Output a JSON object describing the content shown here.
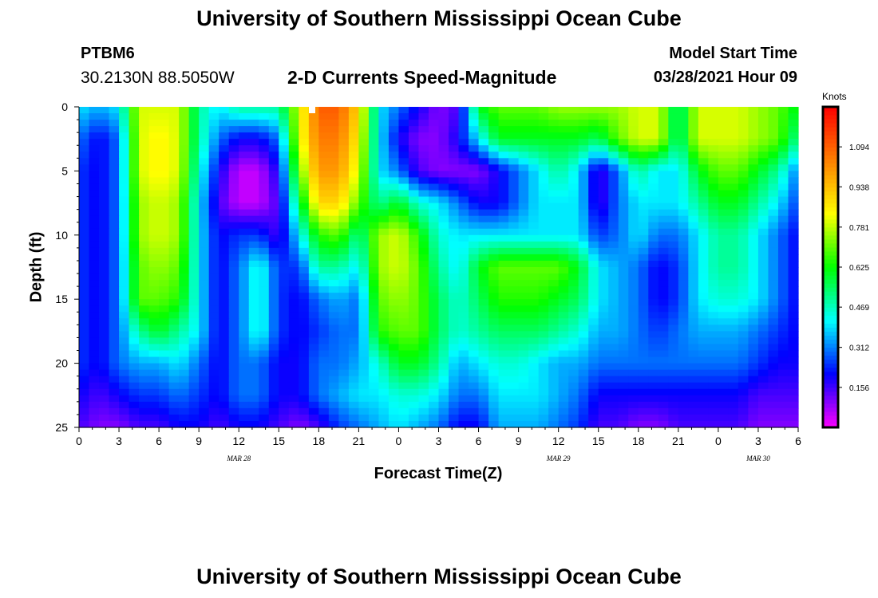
{
  "header": {
    "title": "University of Southern Mississippi Ocean Cube",
    "station_id": "PTBM6",
    "station_coords": "30.2130N  88.5050W",
    "chart_title": "2-D Currents Speed-Magnitude",
    "model_start_label": "Model Start Time",
    "model_start_value": "03/28/2021 Hour 09"
  },
  "footer": {
    "title": "University of Southern Mississippi Ocean Cube"
  },
  "chart_data": {
    "type": "heatmap",
    "title": "2-D Currents Speed-Magnitude",
    "xlabel": "Forecast Time(Z)",
    "ylabel": "Depth (ft)",
    "colorbar_label": "Knots",
    "colorbar_ticks": [
      "0.156",
      "0.312",
      "0.469",
      "0.625",
      "0.781",
      "0.938",
      "1.094"
    ],
    "colorbar_values": [
      0.156,
      0.312,
      0.469,
      0.625,
      0.781,
      0.938,
      1.094
    ],
    "value_range": [
      0.0,
      1.25
    ],
    "colors": [
      "#ff00ff",
      "#0000ff",
      "#00ffff",
      "#00ff00",
      "#ffff00",
      "#ff8000",
      "#ff0000"
    ],
    "x_tick_labels": [
      "0",
      "3",
      "6",
      "9",
      "12",
      "15",
      "18",
      "21",
      "0",
      "3",
      "6",
      "9",
      "12",
      "15",
      "18",
      "21",
      "0",
      "3",
      "6"
    ],
    "x_hours_since_start": [
      0,
      3,
      6,
      9,
      12,
      15,
      18,
      21,
      24,
      27,
      30,
      33,
      36,
      39,
      42,
      45,
      48,
      51,
      54
    ],
    "x_range_hours": [
      0,
      54
    ],
    "date_labels": [
      {
        "label": "MAR 28",
        "hour": 12
      },
      {
        "label": "MAR 29",
        "hour": 36
      },
      {
        "label": "MAR 30",
        "hour": 51
      }
    ],
    "y_tick_labels": [
      "0",
      "5",
      "10",
      "15",
      "20",
      "25"
    ],
    "y_ticks": [
      0,
      5,
      10,
      15,
      20,
      25
    ],
    "ylim": [
      0,
      25
    ],
    "y_inverted": true,
    "depths_ft": [
      0,
      2.5,
      5,
      7.5,
      10,
      12.5,
      15,
      17.5,
      20,
      22.5,
      25
    ],
    "times_hours": [
      0,
      1.5,
      3,
      4.5,
      6,
      7.5,
      9,
      10.5,
      12,
      13.5,
      15,
      16.5,
      18,
      19.5,
      21,
      22.5,
      24,
      25.5,
      27,
      28.5,
      30,
      31.5,
      33,
      34.5,
      36,
      37.5,
      39,
      40.5,
      42,
      43.5,
      45,
      46.5,
      48,
      49.5,
      51,
      52.5,
      54
    ],
    "values_knots": [
      [
        0.4,
        0.35,
        0.4,
        0.8,
        0.8,
        0.8,
        0.5,
        0.4,
        0.5,
        0.5,
        0.5,
        0.8,
        1.1,
        1.1,
        0.9,
        0.4,
        0.3,
        0.2,
        0.1,
        0.15,
        0.6,
        0.7,
        0.7,
        0.7,
        0.75,
        0.75,
        0.75,
        0.75,
        0.8,
        0.8,
        0.5,
        0.8,
        0.8,
        0.8,
        0.75,
        0.7,
        0.6
      ],
      [
        0.3,
        0.2,
        0.3,
        0.8,
        0.85,
        0.8,
        0.5,
        0.3,
        0.2,
        0.2,
        0.3,
        0.8,
        1.05,
        1.05,
        0.85,
        0.4,
        0.2,
        0.1,
        0.1,
        0.2,
        0.4,
        0.6,
        0.6,
        0.6,
        0.6,
        0.6,
        0.55,
        0.7,
        0.8,
        0.8,
        0.5,
        0.8,
        0.8,
        0.8,
        0.75,
        0.7,
        0.5
      ],
      [
        0.25,
        0.2,
        0.3,
        0.8,
        0.85,
        0.8,
        0.45,
        0.2,
        0.05,
        0.05,
        0.2,
        0.7,
        1.0,
        1.0,
        0.8,
        0.4,
        0.3,
        0.15,
        0.1,
        0.1,
        0.1,
        0.2,
        0.3,
        0.4,
        0.5,
        0.4,
        0.15,
        0.3,
        0.5,
        0.4,
        0.4,
        0.6,
        0.7,
        0.7,
        0.6,
        0.5,
        0.3
      ],
      [
        0.25,
        0.2,
        0.3,
        0.75,
        0.8,
        0.75,
        0.4,
        0.15,
        0.05,
        0.05,
        0.15,
        0.55,
        0.9,
        0.9,
        0.7,
        0.5,
        0.6,
        0.45,
        0.4,
        0.3,
        0.2,
        0.2,
        0.3,
        0.4,
        0.4,
        0.4,
        0.15,
        0.3,
        0.4,
        0.4,
        0.4,
        0.5,
        0.6,
        0.6,
        0.5,
        0.4,
        0.25
      ],
      [
        0.25,
        0.2,
        0.3,
        0.75,
        0.8,
        0.75,
        0.4,
        0.2,
        0.25,
        0.25,
        0.15,
        0.4,
        0.65,
        0.7,
        0.5,
        0.75,
        0.8,
        0.65,
        0.45,
        0.4,
        0.4,
        0.4,
        0.4,
        0.4,
        0.4,
        0.4,
        0.25,
        0.3,
        0.4,
        0.3,
        0.3,
        0.4,
        0.5,
        0.5,
        0.4,
        0.3,
        0.2
      ],
      [
        0.25,
        0.2,
        0.3,
        0.7,
        0.75,
        0.7,
        0.4,
        0.2,
        0.3,
        0.45,
        0.25,
        0.25,
        0.5,
        0.5,
        0.4,
        0.75,
        0.8,
        0.7,
        0.5,
        0.4,
        0.6,
        0.7,
        0.7,
        0.7,
        0.7,
        0.6,
        0.4,
        0.35,
        0.3,
        0.2,
        0.25,
        0.4,
        0.5,
        0.5,
        0.4,
        0.3,
        0.2
      ],
      [
        0.25,
        0.2,
        0.3,
        0.7,
        0.7,
        0.65,
        0.4,
        0.2,
        0.3,
        0.45,
        0.25,
        0.2,
        0.3,
        0.35,
        0.3,
        0.7,
        0.75,
        0.7,
        0.55,
        0.45,
        0.55,
        0.65,
        0.65,
        0.65,
        0.6,
        0.55,
        0.4,
        0.35,
        0.3,
        0.2,
        0.25,
        0.4,
        0.45,
        0.45,
        0.4,
        0.3,
        0.2
      ],
      [
        0.25,
        0.2,
        0.3,
        0.5,
        0.6,
        0.5,
        0.4,
        0.2,
        0.3,
        0.45,
        0.25,
        0.2,
        0.25,
        0.3,
        0.3,
        0.65,
        0.7,
        0.7,
        0.55,
        0.45,
        0.5,
        0.55,
        0.55,
        0.55,
        0.5,
        0.45,
        0.35,
        0.35,
        0.3,
        0.25,
        0.3,
        0.35,
        0.35,
        0.35,
        0.3,
        0.25,
        0.2
      ],
      [
        0.25,
        0.2,
        0.3,
        0.35,
        0.35,
        0.4,
        0.3,
        0.2,
        0.3,
        0.3,
        0.2,
        0.2,
        0.3,
        0.3,
        0.35,
        0.45,
        0.6,
        0.6,
        0.5,
        0.35,
        0.4,
        0.45,
        0.45,
        0.4,
        0.35,
        0.35,
        0.3,
        0.3,
        0.3,
        0.3,
        0.3,
        0.3,
        0.3,
        0.3,
        0.25,
        0.2,
        0.2
      ],
      [
        0.2,
        0.15,
        0.2,
        0.25,
        0.25,
        0.3,
        0.25,
        0.2,
        0.3,
        0.3,
        0.2,
        0.2,
        0.3,
        0.35,
        0.4,
        0.4,
        0.45,
        0.45,
        0.4,
        0.3,
        0.3,
        0.4,
        0.4,
        0.4,
        0.35,
        0.3,
        0.2,
        0.2,
        0.2,
        0.2,
        0.2,
        0.2,
        0.2,
        0.2,
        0.15,
        0.15,
        0.15
      ],
      [
        0.15,
        0.1,
        0.1,
        0.15,
        0.15,
        0.2,
        0.2,
        0.15,
        0.2,
        0.2,
        0.15,
        0.1,
        0.15,
        0.25,
        0.3,
        0.35,
        0.4,
        0.35,
        0.3,
        0.2,
        0.2,
        0.35,
        0.35,
        0.35,
        0.3,
        0.25,
        0.15,
        0.15,
        0.1,
        0.1,
        0.15,
        0.15,
        0.15,
        0.15,
        0.1,
        0.1,
        0.1
      ]
    ],
    "marker": {
      "hour": 17.5,
      "depth_ft": 0
    }
  }
}
